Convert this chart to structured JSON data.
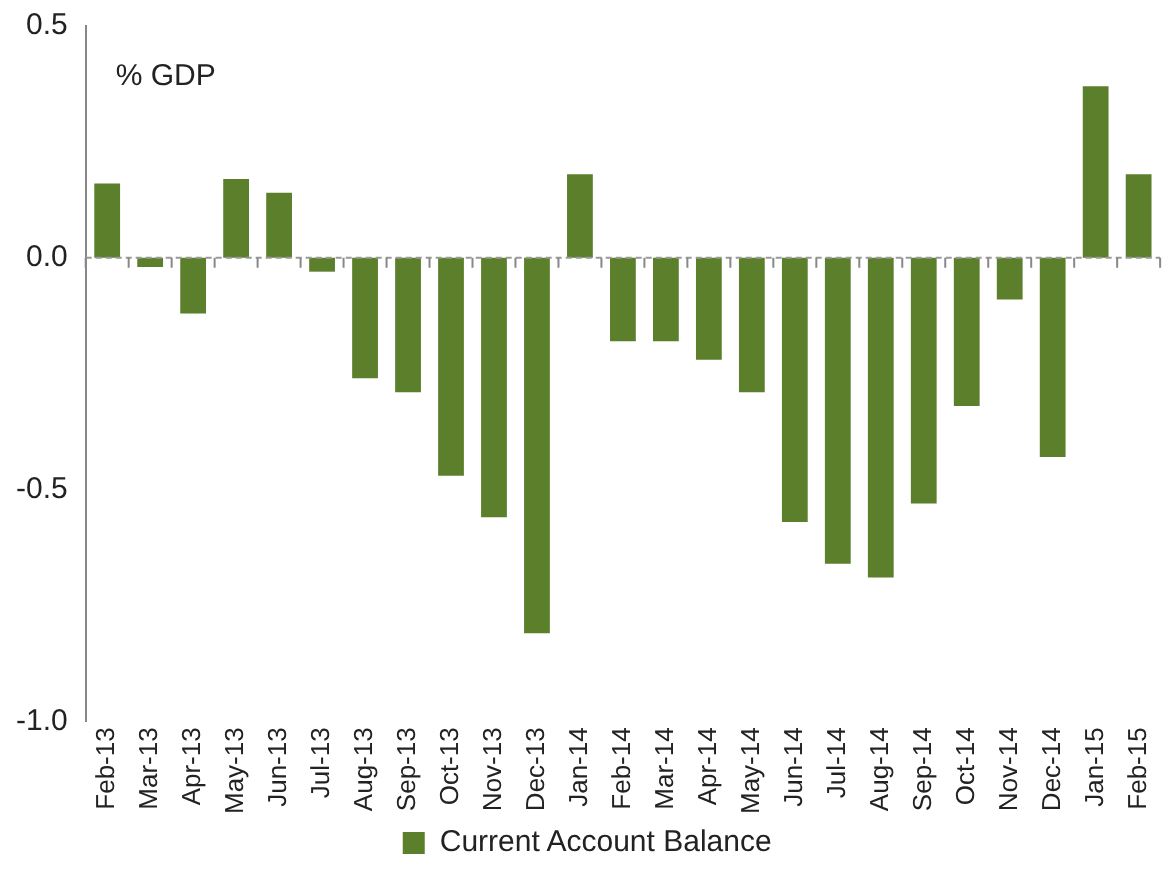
{
  "chart_data": {
    "type": "bar",
    "ylabel": "% GDP",
    "categories": [
      "Feb-13",
      "Mar-13",
      "Apr-13",
      "May-13",
      "Jun-13",
      "Jul-13",
      "Aug-13",
      "Sep-13",
      "Oct-13",
      "Nov-13",
      "Dec-13",
      "Jan-14",
      "Feb-14",
      "Mar-14",
      "Apr-14",
      "May-14",
      "Jun-14",
      "Jul-14",
      "Aug-14",
      "Sep-14",
      "Oct-14",
      "Nov-14",
      "Dec-14",
      "Jan-15",
      "Feb-15"
    ],
    "series": [
      {
        "name": "Current Account Balance",
        "color": "#5b7f2b",
        "values": [
          0.16,
          -0.02,
          -0.12,
          0.17,
          0.14,
          -0.03,
          -0.26,
          -0.29,
          -0.47,
          -0.56,
          -0.81,
          0.18,
          -0.18,
          -0.18,
          -0.22,
          -0.29,
          -0.57,
          -0.66,
          -0.69,
          -0.53,
          -0.32,
          -0.09,
          -0.43,
          0.37,
          0.18
        ]
      }
    ],
    "ylim": [
      -1.0,
      0.5
    ],
    "yticks": [
      {
        "value": -1.0,
        "label": "-1.0"
      },
      {
        "value": -0.5,
        "label": "-0.5"
      },
      {
        "value": 0,
        "label": "0.0"
      },
      {
        "value": 0.5,
        "label": "0.5"
      }
    ],
    "ref_lines": [
      {
        "axis": "y",
        "value": 0,
        "color": "#999999",
        "line_style": "dashed"
      }
    ],
    "legend": "bottom",
    "grid": false
  }
}
